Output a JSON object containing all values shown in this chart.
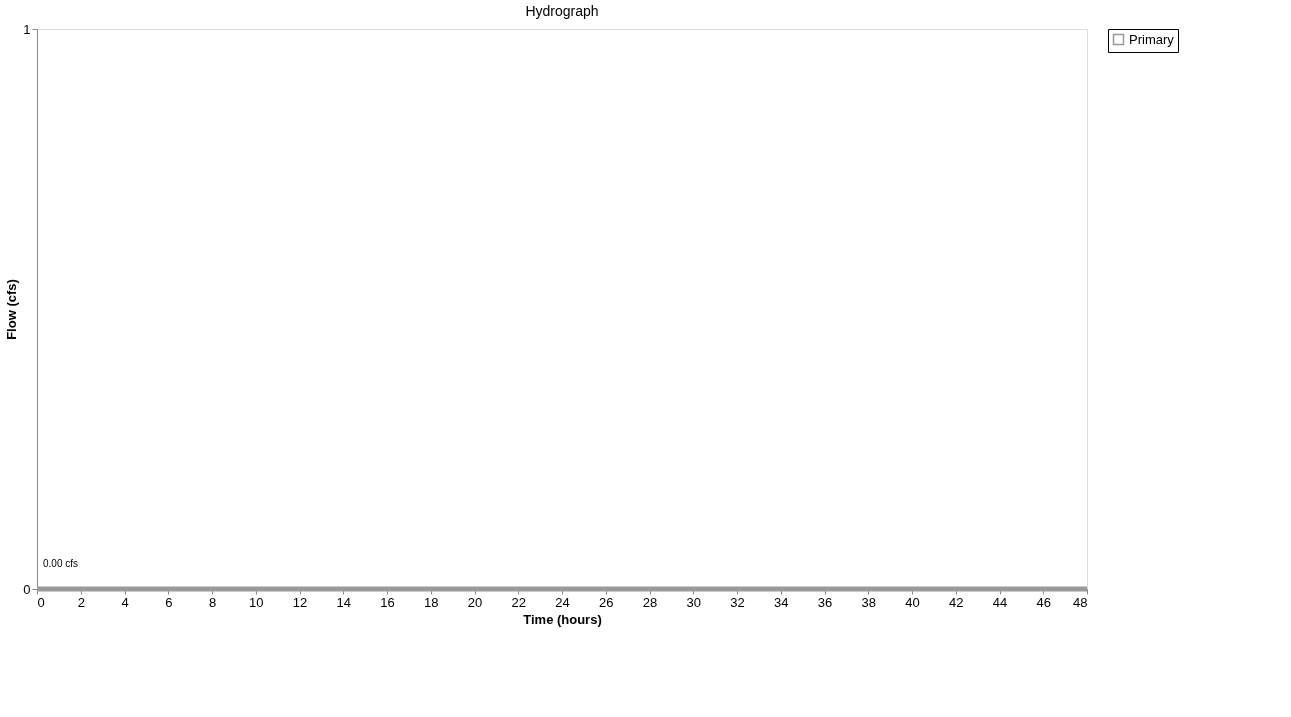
{
  "chart_data": {
    "type": "line",
    "title": "Hydrograph",
    "xlabel": "Time (hours)",
    "ylabel": "Flow (cfs)",
    "x": [
      0,
      48
    ],
    "series": [
      {
        "name": "Primary",
        "color": "#9a9a9a",
        "values": [
          0,
          0
        ]
      }
    ],
    "xlim": [
      0,
      48
    ],
    "xticks": [
      0,
      2,
      4,
      6,
      8,
      10,
      12,
      14,
      16,
      18,
      20,
      22,
      24,
      26,
      28,
      30,
      32,
      34,
      36,
      38,
      40,
      42,
      44,
      46,
      48
    ],
    "ylim": [
      0,
      1
    ],
    "yticks": [
      0,
      1
    ],
    "annotations": [
      "0.00 cfs"
    ],
    "grid": false,
    "legend": "top right"
  }
}
